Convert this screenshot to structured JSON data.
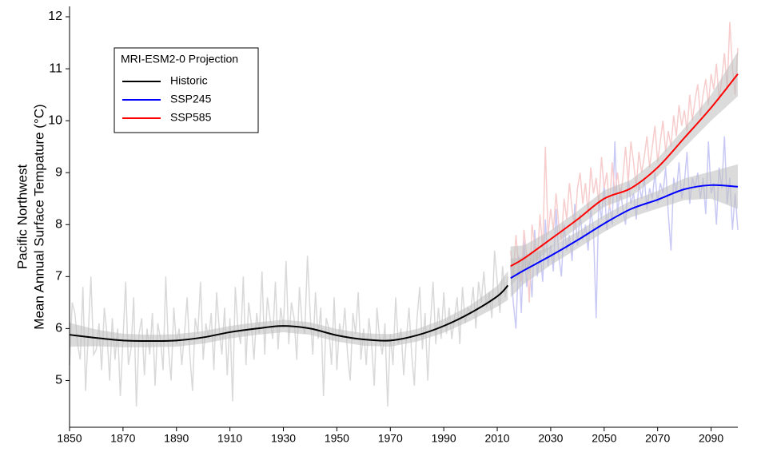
{
  "chart_data": {
    "type": "line",
    "ylabel": [
      "Pacific Northwest",
      "Mean Annual Surface Tempature (°C)"
    ],
    "legend_title": "MRI-ESM2-0 Projection",
    "legend": "top-left",
    "xlim": [
      1850,
      2100
    ],
    "xticks": [
      1850,
      1870,
      1890,
      1910,
      1930,
      1950,
      1970,
      1990,
      2010,
      2030,
      2050,
      2070,
      2090
    ],
    "ylim": [
      4.1,
      12.2
    ],
    "yticks": [
      5,
      6,
      7,
      8,
      9,
      10,
      11,
      12
    ],
    "band_color": "#bdbdbd",
    "series": [
      {
        "name": "Historic",
        "color": "#000000",
        "raw_color": "#d9d9d9",
        "x": [
          1850,
          1860,
          1870,
          1880,
          1890,
          1900,
          1910,
          1920,
          1930,
          1940,
          1950,
          1960,
          1970,
          1980,
          1990,
          2000,
          2010,
          2014
        ],
        "values": [
          5.88,
          5.82,
          5.77,
          5.76,
          5.77,
          5.83,
          5.93,
          6.0,
          6.05,
          6.0,
          5.87,
          5.79,
          5.77,
          5.87,
          6.05,
          6.3,
          6.62,
          6.83
        ],
        "lower": [
          5.65,
          5.66,
          5.64,
          5.64,
          5.65,
          5.71,
          5.81,
          5.88,
          5.93,
          5.88,
          5.75,
          5.67,
          5.65,
          5.75,
          5.92,
          6.15,
          6.42,
          6.55
        ],
        "upper": [
          6.11,
          5.98,
          5.9,
          5.88,
          5.89,
          5.95,
          6.05,
          6.12,
          6.17,
          6.12,
          5.99,
          5.91,
          5.89,
          5.99,
          6.18,
          6.45,
          6.82,
          7.11
        ],
        "raw_x": [
          1850,
          1851,
          1852,
          1853,
          1854,
          1855,
          1856,
          1857,
          1858,
          1859,
          1860,
          1861,
          1862,
          1863,
          1864,
          1865,
          1866,
          1867,
          1868,
          1869,
          1870,
          1871,
          1872,
          1873,
          1874,
          1875,
          1876,
          1877,
          1878,
          1879,
          1880,
          1881,
          1882,
          1883,
          1884,
          1885,
          1886,
          1887,
          1888,
          1889,
          1890,
          1891,
          1892,
          1893,
          1894,
          1895,
          1896,
          1897,
          1898,
          1899,
          1900,
          1901,
          1902,
          1903,
          1904,
          1905,
          1906,
          1907,
          1908,
          1909,
          1910,
          1911,
          1912,
          1913,
          1914,
          1915,
          1916,
          1917,
          1918,
          1919,
          1920,
          1921,
          1922,
          1923,
          1924,
          1925,
          1926,
          1927,
          1928,
          1929,
          1930,
          1931,
          1932,
          1933,
          1934,
          1935,
          1936,
          1937,
          1938,
          1939,
          1940,
          1941,
          1942,
          1943,
          1944,
          1945,
          1946,
          1947,
          1948,
          1949,
          1950,
          1951,
          1952,
          1953,
          1954,
          1955,
          1956,
          1957,
          1958,
          1959,
          1960,
          1961,
          1962,
          1963,
          1964,
          1965,
          1966,
          1967,
          1968,
          1969,
          1970,
          1971,
          1972,
          1973,
          1974,
          1975,
          1976,
          1977,
          1978,
          1979,
          1980,
          1981,
          1982,
          1983,
          1984,
          1985,
          1986,
          1987,
          1988,
          1989,
          1990,
          1991,
          1992,
          1993,
          1994,
          1995,
          1996,
          1997,
          1998,
          1999,
          2000,
          2001,
          2002,
          2003,
          2004,
          2005,
          2006,
          2007,
          2008,
          2009,
          2010,
          2011,
          2012,
          2013,
          2014
        ],
        "raw": [
          5.3,
          6.5,
          6.3,
          5.7,
          5.4,
          6.8,
          4.8,
          5.9,
          7.0,
          5.5,
          5.6,
          6.1,
          5.2,
          6.4,
          5.9,
          5.0,
          6.2,
          5.4,
          6.0,
          4.7,
          5.8,
          6.9,
          5.3,
          5.6,
          6.6,
          4.5,
          5.9,
          6.2,
          5.1,
          6.0,
          5.5,
          6.3,
          4.9,
          6.1,
          5.8,
          5.2,
          7.0,
          5.6,
          5.0,
          6.4,
          5.7,
          6.0,
          5.3,
          5.9,
          6.6,
          5.5,
          4.8,
          6.2,
          5.9,
          6.9,
          5.4,
          6.1,
          5.8,
          6.3,
          5.2,
          6.7,
          6.0,
          5.5,
          6.4,
          5.1,
          6.2,
          4.6,
          6.8,
          6.0,
          5.7,
          7.0,
          5.3,
          6.5,
          6.1,
          5.4,
          6.3,
          5.9,
          7.1,
          5.5,
          6.6,
          6.2,
          5.8,
          6.9,
          5.6,
          6.4,
          6.0,
          7.3,
          5.7,
          6.5,
          6.2,
          5.4,
          6.8,
          6.1,
          5.9,
          7.4,
          6.3,
          5.5,
          6.7,
          5.8,
          6.4,
          4.7,
          6.2,
          6.0,
          5.3,
          6.6,
          5.2,
          6.1,
          5.8,
          6.4,
          5.5,
          5.0,
          6.3,
          5.9,
          6.7,
          5.4,
          6.0,
          5.3,
          6.2,
          5.7,
          4.9,
          6.4,
          5.8,
          5.5,
          6.1,
          4.5,
          5.9,
          5.3,
          6.6,
          5.7,
          6.0,
          5.1,
          5.8,
          6.4,
          5.5,
          4.9,
          6.2,
          6.8,
          5.6,
          6.3,
          5.0,
          6.1,
          6.9,
          5.7,
          6.4,
          5.8,
          6.7,
          5.9,
          6.4,
          5.8,
          6.2,
          6.6,
          5.7,
          6.8,
          6.1,
          6.4,
          6.3,
          6.8,
          6.0,
          6.9,
          6.5,
          7.1,
          6.4,
          6.7,
          6.2,
          7.5,
          6.9,
          6.3,
          7.2,
          6.6,
          7.0
        ]
      },
      {
        "name": "SSP245",
        "color": "#0000ff",
        "raw_color": "#c9c9f5",
        "x": [
          2015,
          2020,
          2030,
          2040,
          2050,
          2060,
          2070,
          2080,
          2090,
          2100
        ],
        "values": [
          6.97,
          7.12,
          7.4,
          7.7,
          8.02,
          8.3,
          8.48,
          8.68,
          8.76,
          8.73
        ],
        "lower": [
          6.6,
          6.86,
          7.22,
          7.54,
          7.86,
          8.14,
          8.31,
          8.47,
          8.5,
          8.3
        ],
        "upper": [
          7.34,
          7.38,
          7.58,
          7.86,
          8.18,
          8.46,
          8.65,
          8.89,
          9.02,
          9.16
        ],
        "raw_x": [
          2015,
          2016,
          2017,
          2018,
          2019,
          2020,
          2021,
          2022,
          2023,
          2024,
          2025,
          2026,
          2027,
          2028,
          2029,
          2030,
          2031,
          2032,
          2033,
          2034,
          2035,
          2036,
          2037,
          2038,
          2039,
          2040,
          2041,
          2042,
          2043,
          2044,
          2045,
          2046,
          2047,
          2048,
          2049,
          2050,
          2051,
          2052,
          2053,
          2054,
          2055,
          2056,
          2057,
          2058,
          2059,
          2060,
          2061,
          2062,
          2063,
          2064,
          2065,
          2066,
          2067,
          2068,
          2069,
          2070,
          2071,
          2072,
          2073,
          2074,
          2075,
          2076,
          2077,
          2078,
          2079,
          2080,
          2081,
          2082,
          2083,
          2084,
          2085,
          2086,
          2087,
          2088,
          2089,
          2090,
          2091,
          2092,
          2093,
          2094,
          2095,
          2096,
          2097,
          2098,
          2099,
          2100
        ],
        "raw": [
          7.2,
          6.5,
          6.0,
          7.4,
          6.3,
          7.7,
          6.8,
          7.3,
          6.6,
          7.9,
          7.0,
          7.5,
          6.9,
          8.1,
          7.2,
          7.6,
          7.1,
          8.3,
          7.4,
          7.0,
          8.0,
          7.5,
          7.8,
          7.3,
          8.4,
          7.6,
          8.2,
          7.7,
          8.0,
          7.5,
          8.3,
          7.9,
          6.2,
          8.5,
          8.1,
          8.8,
          7.9,
          8.4,
          8.0,
          9.6,
          8.2,
          8.7,
          8.3,
          8.0,
          8.9,
          8.4,
          8.6,
          8.1,
          8.8,
          8.5,
          8.9,
          8.3,
          8.7,
          8.5,
          9.0,
          8.4,
          8.8,
          8.6,
          9.1,
          8.2,
          7.5,
          8.9,
          8.6,
          9.2,
          8.5,
          8.8,
          9.4,
          8.4,
          8.9,
          8.7,
          9.0,
          8.5,
          8.9,
          8.2,
          9.6,
          8.6,
          8.8,
          8.0,
          9.1,
          8.7,
          9.7,
          8.4,
          8.9,
          7.9,
          8.6,
          7.9
        ]
      },
      {
        "name": "SSP585",
        "color": "#ff0000",
        "raw_color": "#f7cccc",
        "x": [
          2015,
          2020,
          2030,
          2040,
          2050,
          2060,
          2070,
          2080,
          2090,
          2100
        ],
        "values": [
          7.2,
          7.35,
          7.72,
          8.1,
          8.5,
          8.7,
          9.1,
          9.67,
          10.25,
          10.9
        ],
        "lower": [
          6.82,
          7.1,
          7.55,
          7.94,
          8.34,
          8.54,
          8.93,
          9.48,
          10.0,
          10.47
        ],
        "upper": [
          7.58,
          7.6,
          7.89,
          8.26,
          8.66,
          8.86,
          9.27,
          9.86,
          10.5,
          11.33
        ],
        "raw_x": [
          2015,
          2016,
          2017,
          2018,
          2019,
          2020,
          2021,
          2022,
          2023,
          2024,
          2025,
          2026,
          2027,
          2028,
          2029,
          2030,
          2031,
          2032,
          2033,
          2034,
          2035,
          2036,
          2037,
          2038,
          2039,
          2040,
          2041,
          2042,
          2043,
          2044,
          2045,
          2046,
          2047,
          2048,
          2049,
          2050,
          2051,
          2052,
          2053,
          2054,
          2055,
          2056,
          2057,
          2058,
          2059,
          2060,
          2061,
          2062,
          2063,
          2064,
          2065,
          2066,
          2067,
          2068,
          2069,
          2070,
          2071,
          2072,
          2073,
          2074,
          2075,
          2076,
          2077,
          2078,
          2079,
          2080,
          2081,
          2082,
          2083,
          2084,
          2085,
          2086,
          2087,
          2088,
          2089,
          2090,
          2091,
          2092,
          2093,
          2094,
          2095,
          2096,
          2097,
          2098,
          2099,
          2100
        ],
        "raw": [
          7.5,
          7.0,
          7.8,
          7.2,
          6.9,
          7.9,
          7.4,
          6.5,
          8.0,
          7.6,
          7.3,
          8.2,
          7.5,
          9.5,
          7.8,
          8.3,
          7.9,
          8.6,
          8.0,
          7.7,
          8.5,
          8.1,
          8.8,
          8.3,
          7.9,
          8.7,
          9.0,
          8.4,
          8.8,
          8.2,
          9.1,
          8.6,
          8.9,
          8.4,
          9.3,
          8.7,
          9.0,
          8.3,
          9.2,
          8.6,
          9.0,
          8.5,
          8.9,
          9.5,
          8.8,
          9.6,
          9.2,
          8.7,
          9.4,
          9.0,
          9.3,
          9.7,
          9.1,
          9.5,
          9.9,
          9.2,
          9.6,
          10.0,
          9.4,
          9.8,
          9.5,
          10.1,
          9.7,
          10.3,
          9.9,
          10.2,
          9.8,
          10.5,
          10.0,
          10.4,
          10.7,
          10.1,
          10.5,
          10.8,
          10.3,
          10.9,
          10.6,
          11.1,
          10.4,
          10.8,
          11.3,
          10.6,
          11.9,
          11.0,
          10.5,
          11.4
        ]
      }
    ]
  }
}
